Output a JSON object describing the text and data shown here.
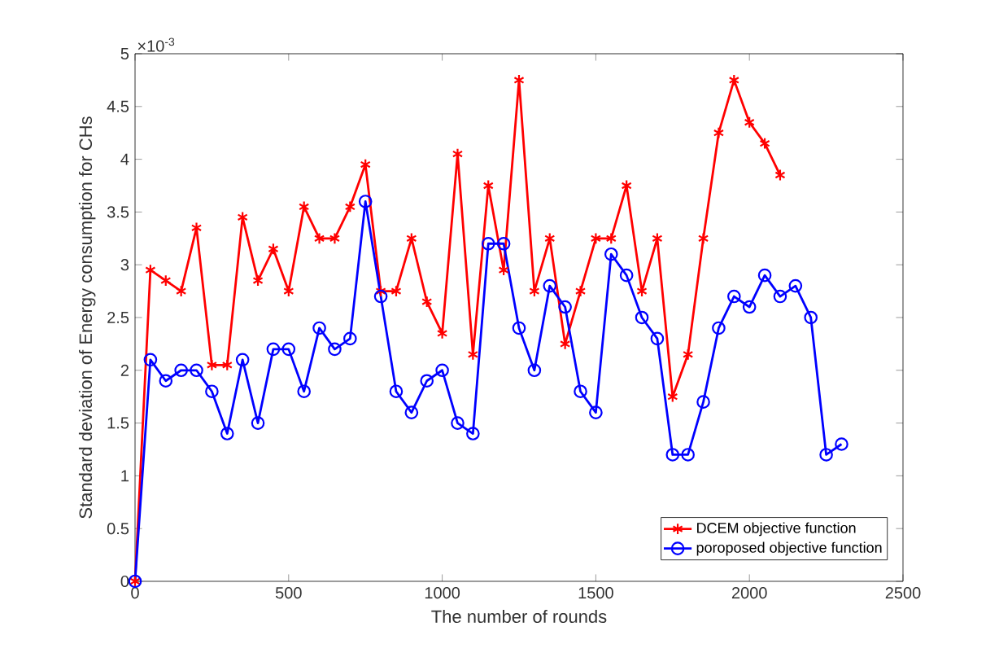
{
  "chart_data": {
    "type": "line",
    "xlabel": "The number of rounds",
    "ylabel": "Standard deviation of Energy consumption for CHs",
    "annotations": [
      "×10$^{-3}$"
    ],
    "xlim": [
      0,
      2500
    ],
    "xticks": [
      0,
      500,
      1000,
      1500,
      2000,
      2500
    ],
    "ylim": [
      0,
      5
    ],
    "yticks": [
      0,
      0.5,
      1,
      1.5,
      2,
      2.5,
      3,
      3.5,
      4,
      4.5,
      5
    ],
    "grid": false,
    "legend": "bottom right",
    "line_style": "solid",
    "series": [
      {
        "name": "DCEM objective function",
        "color": "#ff0000",
        "marker": "cross",
        "x": [
          0,
          50,
          100,
          150,
          200,
          250,
          300,
          350,
          400,
          450,
          500,
          550,
          600,
          650,
          700,
          750,
          800,
          850,
          900,
          950,
          1000,
          1050,
          1100,
          1150,
          1200,
          1250,
          1300,
          1350,
          1400,
          1450,
          1500,
          1550,
          1600,
          1650,
          1700,
          1750,
          1800,
          1850,
          1900,
          1950,
          2000,
          2050,
          2100
        ],
        "values": [
          0,
          2.95,
          2.85,
          2.75,
          3.35,
          2.05,
          2.05,
          3.45,
          2.85,
          3.15,
          2.75,
          3.55,
          3.25,
          3.25,
          3.55,
          3.95,
          2.75,
          2.75,
          3.25,
          2.65,
          2.35,
          4.05,
          2.15,
          3.75,
          2.95,
          4.75,
          2.75,
          3.25,
          2.25,
          2.75,
          3.25,
          3.25,
          3.75,
          2.75,
          3.25,
          1.75,
          2.15,
          3.25,
          4.25,
          4.75,
          4.35,
          4.15,
          3.85
        ]
      },
      {
        "name": "poroposed objective function",
        "color": "#0000ff",
        "marker": "circle",
        "x": [
          0,
          50,
          100,
          150,
          200,
          250,
          300,
          350,
          400,
          450,
          500,
          550,
          600,
          650,
          700,
          750,
          800,
          850,
          900,
          950,
          1000,
          1050,
          1100,
          1150,
          1200,
          1250,
          1300,
          1350,
          1400,
          1450,
          1500,
          1550,
          1600,
          1650,
          1700,
          1750,
          1800,
          1850,
          1900,
          1950,
          2000,
          2050,
          2100,
          2150,
          2200,
          2250,
          2300
        ],
        "values": [
          0,
          2.1,
          1.9,
          2.0,
          2.0,
          1.8,
          1.4,
          2.1,
          1.5,
          2.2,
          2.2,
          1.8,
          2.4,
          2.2,
          2.3,
          3.6,
          2.7,
          1.8,
          1.6,
          1.9,
          2.0,
          1.5,
          1.4,
          3.2,
          3.2,
          2.4,
          2.0,
          2.8,
          2.6,
          1.8,
          1.6,
          3.1,
          2.9,
          2.5,
          2.3,
          1.2,
          1.2,
          1.7,
          2.4,
          2.7,
          2.6,
          2.9,
          2.7,
          2.8,
          2.5,
          1.2,
          1.3
        ]
      }
    ]
  }
}
